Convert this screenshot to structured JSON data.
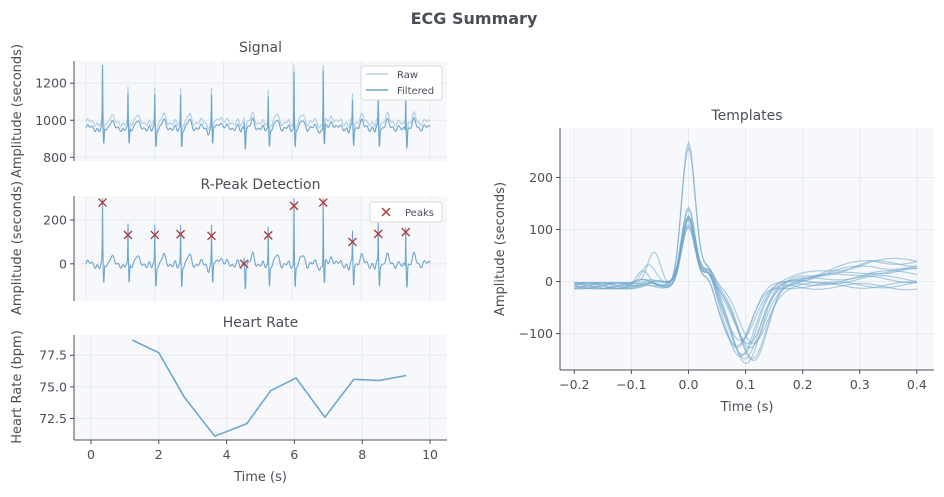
{
  "figure": {
    "title": "ECG Summary"
  },
  "chart_data": [
    {
      "type": "line",
      "title": "Signal",
      "xlabel": "",
      "ylabel": "Amplitude (seconds)",
      "xlim": [
        -0.35,
        10.5
      ],
      "ylim": [
        780,
        1320
      ],
      "yticks": [
        800,
        1000,
        1200
      ],
      "grid": true,
      "legend": "top-right",
      "series": [
        {
          "name": "Raw",
          "color": "#b9d3e5"
        },
        {
          "name": "Filtered",
          "color": "#6ea6cb"
        }
      ],
      "beat_times": [
        0.48,
        1.22,
        2.0,
        2.75,
        3.65,
        4.6,
        5.3,
        6.05,
        6.9,
        7.75,
        8.5,
        9.3
      ]
    },
    {
      "type": "line",
      "title": "R-Peak Detection",
      "xlabel": "",
      "ylabel": "Amplitude (seconds)",
      "xlim": [
        -0.35,
        10.5
      ],
      "ylim": [
        -170,
        310
      ],
      "yticks": [
        0,
        200
      ],
      "grid": true,
      "legend": "top-right",
      "series": [
        {
          "name": "Signal",
          "color": "#6ea6cb"
        },
        {
          "name": "Peaks",
          "color": "#b03a3a",
          "marker": "x",
          "x": [
            0.48,
            1.22,
            2.0,
            2.75,
            3.65,
            4.6,
            5.3,
            6.05,
            6.9,
            7.75,
            8.5,
            9.3
          ],
          "y": [
            280,
            132,
            132,
            135,
            128,
            0,
            130,
            265,
            280,
            100,
            137,
            145
          ]
        }
      ]
    },
    {
      "type": "line",
      "title": "Heart Rate",
      "xlabel": "Time (s)",
      "ylabel": "Heart Rate (bpm)",
      "xlim": [
        -0.5,
        10.5
      ],
      "ylim": [
        70.8,
        79.1
      ],
      "xticks": [
        0,
        2,
        4,
        6,
        8,
        10
      ],
      "yticks": [
        72.5,
        75.0,
        77.5
      ],
      "grid": true,
      "series": [
        {
          "name": "",
          "color": "#6ea6cb",
          "x": [
            1.22,
            2.0,
            2.75,
            3.65,
            4.6,
            5.3,
            6.05,
            6.9,
            7.75,
            8.5,
            9.3
          ],
          "y": [
            78.7,
            77.7,
            74.2,
            71.1,
            72.1,
            74.7,
            75.7,
            72.6,
            75.6,
            75.5,
            75.9
          ]
        }
      ]
    },
    {
      "type": "line",
      "title": "Templates",
      "xlabel": "Time (s)",
      "ylabel": "Amplitude (seconds)",
      "xlim": [
        -0.225,
        0.43
      ],
      "ylim": [
        -170,
        295
      ],
      "xticks": [
        -0.2,
        -0.1,
        0.0,
        0.1,
        0.2,
        0.3,
        0.4
      ],
      "yticks": [
        -100,
        0,
        100,
        200
      ],
      "grid": true,
      "series_color": "#6ea6cb",
      "template_count": 12,
      "peak_amplitudes": [
        275,
        260,
        145,
        130,
        140,
        120,
        135,
        125,
        140,
        110,
        130,
        125
      ],
      "trough_amplitudes": [
        -145,
        -140,
        -130,
        -120,
        -125,
        -110,
        -135,
        -100,
        -140,
        -115,
        -120,
        -145
      ]
    }
  ]
}
